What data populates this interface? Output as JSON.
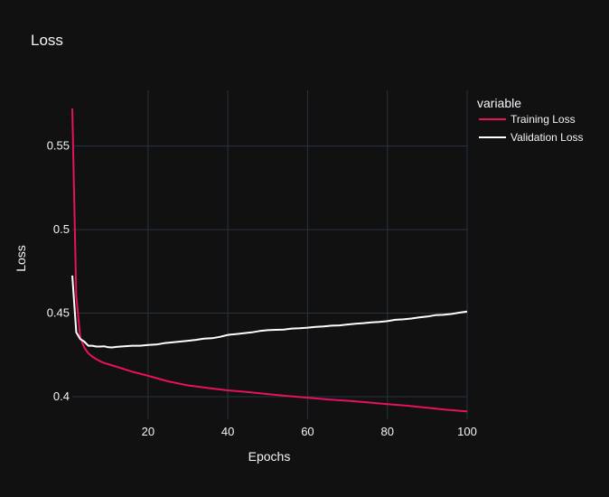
{
  "chart_data": {
    "type": "line",
    "title": "Loss",
    "xlabel": "Epochs",
    "ylabel": "Loss",
    "xlim": [
      1,
      100
    ],
    "ylim": [
      0.3865,
      0.5833
    ],
    "xticks": [
      20,
      40,
      60,
      80,
      100
    ],
    "xtick_labels": [
      "20",
      "40",
      "60",
      "80",
      "100"
    ],
    "yticks": [
      0.4,
      0.45,
      0.5,
      0.55
    ],
    "ytick_labels": [
      "0.4",
      "0.45",
      "0.5",
      "0.55"
    ],
    "grid": true,
    "legend_title": "variable",
    "legend_position": "top-right",
    "series": [
      {
        "name": "Training Loss",
        "color": "#e8115b",
        "x": [
          1,
          2,
          3,
          4,
          5,
          6,
          7,
          8,
          9,
          10,
          12,
          14,
          16,
          18,
          20,
          25,
          30,
          35,
          40,
          45,
          50,
          55,
          60,
          65,
          70,
          75,
          80,
          85,
          90,
          95,
          100
        ],
        "values": [
          0.5725,
          0.4605,
          0.4355,
          0.4295,
          0.426,
          0.424,
          0.4225,
          0.4212,
          0.4202,
          0.4195,
          0.418,
          0.4165,
          0.415,
          0.4138,
          0.4125,
          0.4092,
          0.4068,
          0.4052,
          0.4038,
          0.4028,
          0.4016,
          0.4004,
          0.3994,
          0.3984,
          0.3976,
          0.3966,
          0.3956,
          0.3946,
          0.3934,
          0.3922,
          0.3912
        ]
      },
      {
        "name": "Validation Loss",
        "color": "#ffffff",
        "x": [
          1,
          2,
          3,
          4,
          5,
          6,
          7,
          8,
          9,
          10,
          11,
          12,
          14,
          16,
          18,
          20,
          22,
          24,
          26,
          28,
          30,
          32,
          34,
          36,
          38,
          40,
          42,
          44,
          46,
          48,
          50,
          52,
          54,
          56,
          58,
          60,
          62,
          64,
          66,
          68,
          70,
          72,
          74,
          76,
          78,
          80,
          82,
          84,
          86,
          88,
          90,
          92,
          94,
          96,
          98,
          100
        ],
        "values": [
          0.4725,
          0.4385,
          0.4345,
          0.433,
          0.4305,
          0.4305,
          0.43,
          0.43,
          0.4302,
          0.4296,
          0.4295,
          0.4298,
          0.4302,
          0.4305,
          0.4305,
          0.431,
          0.4312,
          0.432,
          0.4325,
          0.433,
          0.4335,
          0.434,
          0.4347,
          0.435,
          0.4358,
          0.437,
          0.4375,
          0.438,
          0.4385,
          0.4393,
          0.4398,
          0.44,
          0.4402,
          0.4408,
          0.441,
          0.4413,
          0.4418,
          0.442,
          0.4425,
          0.4427,
          0.4432,
          0.4437,
          0.444,
          0.4445,
          0.4448,
          0.4452,
          0.446,
          0.4463,
          0.4468,
          0.4475,
          0.448,
          0.4488,
          0.449,
          0.4495,
          0.4503,
          0.451
        ]
      }
    ]
  }
}
